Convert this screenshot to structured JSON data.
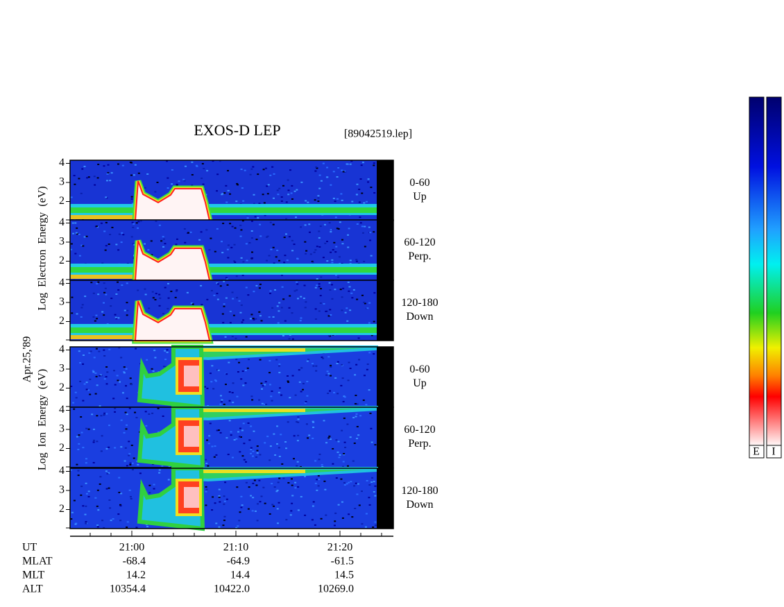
{
  "title": "EXOS-D LEP",
  "file": "[89042519.lep]",
  "electron_axis_label": "Log  Electron  Energy  (eV)",
  "date": "Apr.25,'89",
  "ion_axis_label": "Log  Ion  Energy  (eV)",
  "panels": [
    {
      "angle": "0-60",
      "direction": "Up",
      "yticks": [
        4,
        3,
        2
      ]
    },
    {
      "angle": "60-120",
      "direction": "Perp.",
      "yticks": [
        4,
        3,
        2
      ]
    },
    {
      "angle": "120-180",
      "direction": "Down",
      "yticks": [
        4,
        3,
        2
      ]
    },
    {
      "angle": "0-60",
      "direction": "Up",
      "yticks": [
        4,
        3,
        2
      ]
    },
    {
      "angle": "60-120",
      "direction": "Perp.",
      "yticks": [
        4,
        3,
        2
      ]
    },
    {
      "angle": "120-180",
      "direction": "Down",
      "yticks": [
        4,
        3,
        2
      ]
    }
  ],
  "rows": [
    {
      "label": "UT",
      "values": [
        "21:00",
        "21:10",
        "21:20"
      ]
    },
    {
      "label": "MLAT",
      "values": [
        "-68.4",
        "-64.9",
        "-61.5"
      ]
    },
    {
      "label": "MLT",
      "values": [
        "14.2",
        "14.4",
        "14.5"
      ]
    },
    {
      "label": "ALT",
      "values": [
        "10354.4",
        "10422.0",
        "10269.0"
      ]
    }
  ],
  "colorbar_labels": [
    "E",
    "I"
  ]
}
